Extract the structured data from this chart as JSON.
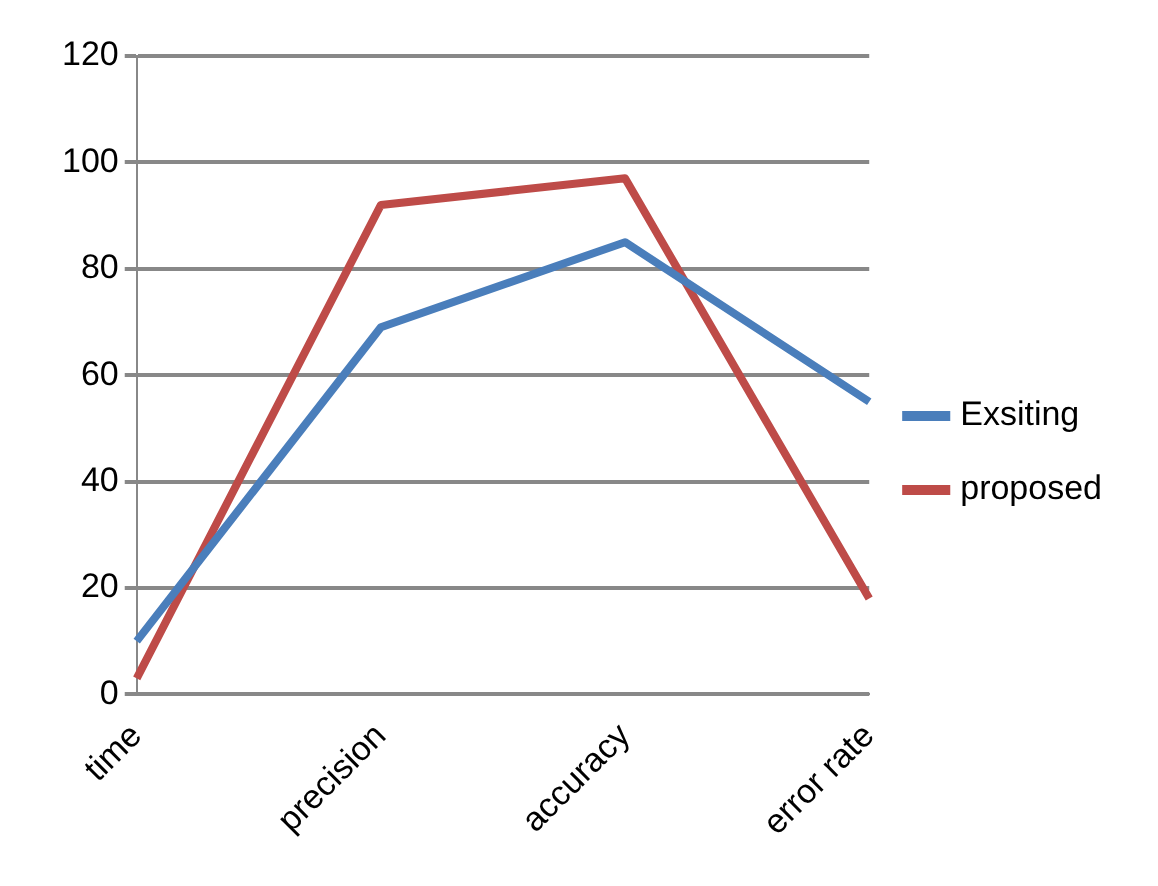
{
  "chart_data": {
    "type": "line",
    "categories": [
      "time",
      "precision",
      "accuracy",
      "error rate"
    ],
    "series": [
      {
        "name": "Exsiting",
        "color": "#4a7ebb",
        "values": [
          10,
          69,
          85,
          55
        ]
      },
      {
        "name": "proposed",
        "color": "#be4b48",
        "values": [
          3,
          92,
          97,
          18
        ]
      }
    ],
    "ylim": [
      0,
      120
    ],
    "yticks": [
      0,
      20,
      40,
      60,
      80,
      100,
      120
    ],
    "grid": "y",
    "legend": "right",
    "marker": "none",
    "line_style": "solid"
  }
}
